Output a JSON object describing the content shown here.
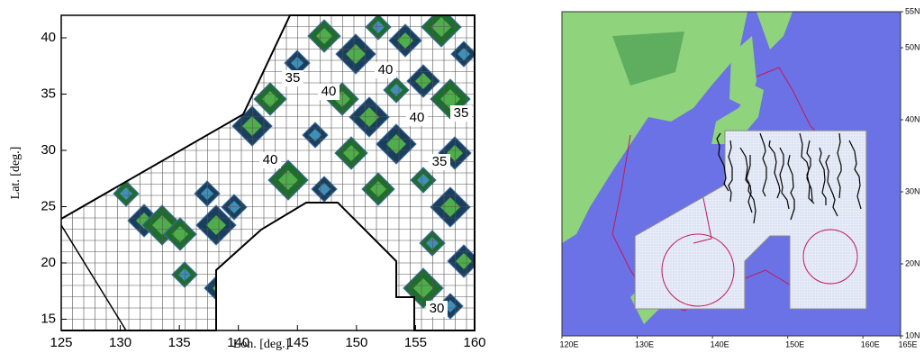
{
  "chart_data": [
    {
      "type": "contour",
      "x_label": "Lon. [deg.]",
      "y_label": "Lat. [deg.]",
      "xlim": [
        125,
        160
      ],
      "ylim": [
        14,
        42
      ],
      "xticks": [
        125,
        130,
        135,
        140,
        145,
        150,
        155,
        160
      ],
      "yticks": [
        15,
        20,
        25,
        30,
        35,
        40
      ],
      "annotations": [
        "35",
        "40",
        "40",
        "40",
        "35",
        "40",
        "35",
        "30"
      ]
    },
    {
      "type": "map",
      "xlim": [
        120,
        165
      ],
      "ylim": [
        10,
        55
      ],
      "xticks": [
        {
          "value": 120,
          "label": "120E"
        },
        {
          "value": 130,
          "label": "130E"
        },
        {
          "value": 140,
          "label": "140E"
        },
        {
          "value": 150,
          "label": "150E"
        },
        {
          "value": 160,
          "label": "160E"
        },
        {
          "value": 165,
          "label": "165E"
        }
      ],
      "yticks": [
        {
          "value": 10,
          "label": "10N"
        },
        {
          "value": 20,
          "label": "20N"
        },
        {
          "value": 30,
          "label": "30N"
        },
        {
          "value": 40,
          "label": "40N"
        },
        {
          "value": 50,
          "label": "50N"
        },
        {
          "value": 55,
          "label": "55N"
        }
      ]
    }
  ]
}
